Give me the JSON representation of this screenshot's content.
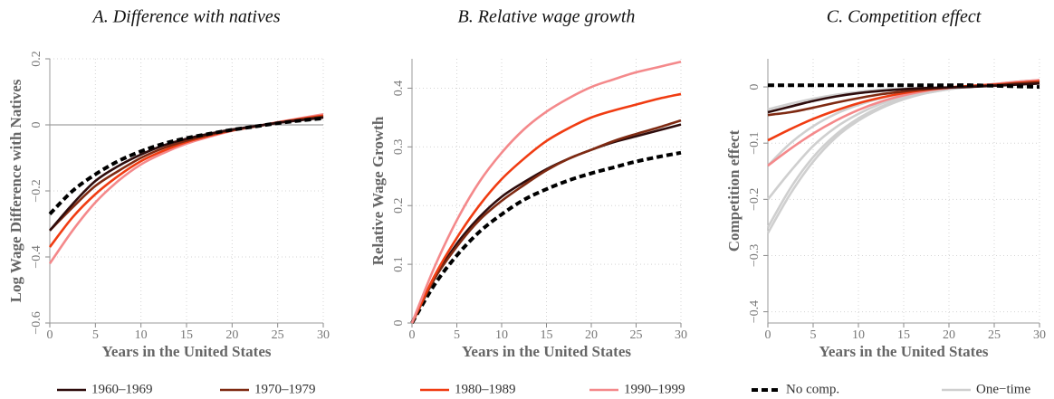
{
  "chart_data": [
    {
      "type": "line",
      "title": "A. Difference with natives",
      "xlabel": "Years in the United States",
      "ylabel": "Log Wage Difference with Natives",
      "x": [
        0,
        2.5,
        5,
        7.5,
        10,
        12.5,
        15,
        17.5,
        20,
        22.5,
        25,
        27.5,
        30
      ],
      "xlim": [
        0,
        30
      ],
      "xticks": [
        0,
        5,
        10,
        15,
        20,
        25,
        30
      ],
      "ylim": [
        -0.6,
        0.2
      ],
      "yticks": [
        {
          "value": -0.6,
          "label": "−0.6"
        },
        {
          "value": -0.4,
          "label": "−0.4"
        },
        {
          "value": -0.2,
          "label": "−0.2"
        },
        0,
        0.2
      ],
      "grid": true,
      "hline": 0,
      "series": [
        {
          "name": "1990–1999",
          "color": "#f4898b",
          "values": [
            -0.42,
            -0.32,
            -0.235,
            -0.17,
            -0.12,
            -0.085,
            -0.057,
            -0.036,
            -0.018,
            -0.005,
            0.008,
            0.02,
            0.032
          ]
        },
        {
          "name": "1980–1989",
          "color": "#f03c12",
          "values": [
            -0.37,
            -0.28,
            -0.21,
            -0.155,
            -0.11,
            -0.078,
            -0.052,
            -0.033,
            -0.017,
            -0.005,
            0.007,
            0.018,
            0.028
          ]
        },
        {
          "name": "1970–1979",
          "color": "#7f2a12",
          "values": [
            -0.32,
            -0.25,
            -0.185,
            -0.14,
            -0.1,
            -0.07,
            -0.048,
            -0.03,
            -0.016,
            -0.005,
            0.006,
            0.016,
            0.025
          ]
        },
        {
          "name": "1960–1969",
          "color": "#2e0c0c",
          "values": [
            -0.32,
            -0.24,
            -0.17,
            -0.125,
            -0.09,
            -0.062,
            -0.042,
            -0.027,
            -0.014,
            -0.004,
            0.006,
            0.014,
            0.022
          ]
        },
        {
          "name": "No comp.",
          "color": "#000000",
          "dashed": true,
          "values": [
            -0.27,
            -0.2,
            -0.15,
            -0.11,
            -0.08,
            -0.057,
            -0.04,
            -0.027,
            -0.015,
            -0.005,
            0.005,
            0.013,
            0.02
          ]
        }
      ]
    },
    {
      "type": "line",
      "title": "B. Relative wage growth",
      "xlabel": "Years in the United States",
      "ylabel": "Relative Wage Growth",
      "x": [
        0,
        2.5,
        5,
        7.5,
        10,
        12.5,
        15,
        17.5,
        20,
        22.5,
        25,
        27.5,
        30
      ],
      "xlim": [
        0,
        30
      ],
      "xticks": [
        0,
        5,
        10,
        15,
        20,
        25,
        30
      ],
      "ylim": [
        0,
        0.45
      ],
      "yticks": [
        0,
        0.1,
        0.2,
        0.3,
        0.4
      ],
      "grid": true,
      "series": [
        {
          "name": "No comp.",
          "color": "#000000",
          "dashed": true,
          "values": [
            0,
            0.065,
            0.115,
            0.155,
            0.185,
            0.21,
            0.228,
            0.243,
            0.255,
            0.265,
            0.275,
            0.283,
            0.29
          ]
        },
        {
          "name": "1960–1969",
          "color": "#2e0c0c",
          "values": [
            0,
            0.075,
            0.135,
            0.18,
            0.215,
            0.24,
            0.262,
            0.28,
            0.295,
            0.308,
            0.318,
            0.328,
            0.338
          ]
        },
        {
          "name": "1970–1979",
          "color": "#7f2a12",
          "values": [
            0,
            0.075,
            0.13,
            0.175,
            0.208,
            0.235,
            0.26,
            0.28,
            0.295,
            0.31,
            0.322,
            0.333,
            0.345
          ]
        },
        {
          "name": "1980–1989",
          "color": "#f03c12",
          "values": [
            0,
            0.08,
            0.145,
            0.2,
            0.245,
            0.28,
            0.31,
            0.332,
            0.35,
            0.362,
            0.372,
            0.382,
            0.39
          ]
        },
        {
          "name": "1990–1999",
          "color": "#f4898b",
          "values": [
            0,
            0.095,
            0.175,
            0.24,
            0.29,
            0.33,
            0.36,
            0.383,
            0.402,
            0.415,
            0.427,
            0.436,
            0.445
          ]
        }
      ]
    },
    {
      "type": "line",
      "title": "C. Competition effect",
      "xlabel": "Years in the United States",
      "ylabel": "Competition effect",
      "x": [
        0,
        2.5,
        5,
        7.5,
        10,
        12.5,
        15,
        17.5,
        20,
        22.5,
        25,
        27.5,
        30
      ],
      "xlim": [
        0,
        30
      ],
      "xticks": [
        0,
        5,
        10,
        15,
        20,
        25,
        30
      ],
      "ylim": [
        -0.42,
        0.05
      ],
      "yticks": [
        {
          "value": -0.4,
          "label": "−0.4"
        },
        {
          "value": -0.3,
          "label": "−0.3"
        },
        {
          "value": -0.2,
          "label": "−0.2"
        },
        {
          "value": -0.1,
          "label": "−0.1"
        },
        0
      ],
      "grid": true,
      "series": [
        {
          "name": "One−time",
          "color": "#cfcfcf",
          "values": [
            -0.04,
            -0.03,
            -0.021,
            -0.014,
            -0.009,
            -0.005,
            -0.003,
            -0.001,
            0,
            0.001,
            0.003,
            0.005,
            0.007
          ]
        },
        {
          "name": "One−time",
          "color": "#cfcfcf",
          "values": [
            -0.14,
            -0.1,
            -0.07,
            -0.048,
            -0.032,
            -0.02,
            -0.012,
            -0.006,
            -0.002,
            0.001,
            0.004,
            0.007,
            0.01
          ]
        },
        {
          "name": "One−time",
          "color": "#cfcfcf",
          "values": [
            -0.2,
            -0.15,
            -0.105,
            -0.072,
            -0.048,
            -0.03,
            -0.018,
            -0.009,
            -0.003,
            0.001,
            0.004,
            0.008,
            0.011
          ]
        },
        {
          "name": "One−time",
          "color": "#cfcfcf",
          "values": [
            -0.25,
            -0.18,
            -0.125,
            -0.085,
            -0.056,
            -0.035,
            -0.021,
            -0.011,
            -0.004,
            0.001,
            0.005,
            0.009,
            0.012
          ]
        },
        {
          "name": "One−time",
          "color": "#cfcfcf",
          "values": [
            -0.26,
            -0.19,
            -0.133,
            -0.09,
            -0.06,
            -0.038,
            -0.022,
            -0.011,
            -0.004,
            0.001,
            0.005,
            0.009,
            0.012
          ]
        },
        {
          "name": "1990–1999",
          "color": "#f4898b",
          "values": [
            -0.14,
            -0.11,
            -0.083,
            -0.06,
            -0.041,
            -0.026,
            -0.015,
            -0.007,
            -0.002,
            0.002,
            0.005,
            0.009,
            0.012
          ]
        },
        {
          "name": "1980–1989",
          "color": "#f03c12",
          "values": [
            -0.095,
            -0.075,
            -0.057,
            -0.042,
            -0.029,
            -0.019,
            -0.011,
            -0.005,
            -0.001,
            0.002,
            0.004,
            0.007,
            0.01
          ]
        },
        {
          "name": "1970–1979",
          "color": "#7f2a12",
          "values": [
            -0.05,
            -0.045,
            -0.037,
            -0.028,
            -0.02,
            -0.013,
            -0.008,
            -0.004,
            -0.001,
            0.001,
            0.003,
            0.006,
            0.008
          ]
        },
        {
          "name": "1960–1969",
          "color": "#2e0c0c",
          "values": [
            -0.045,
            -0.035,
            -0.025,
            -0.017,
            -0.011,
            -0.007,
            -0.004,
            -0.002,
            -0.001,
            0,
            0.002,
            0.004,
            0.006
          ]
        },
        {
          "name": "No comp.",
          "color": "#000000",
          "dashed": true,
          "values": [
            0.003,
            0.003,
            0.003,
            0.003,
            0.003,
            0.003,
            0.003,
            0.003,
            0.003,
            0.003,
            0.002,
            0.001,
            0
          ]
        }
      ]
    }
  ]
}
